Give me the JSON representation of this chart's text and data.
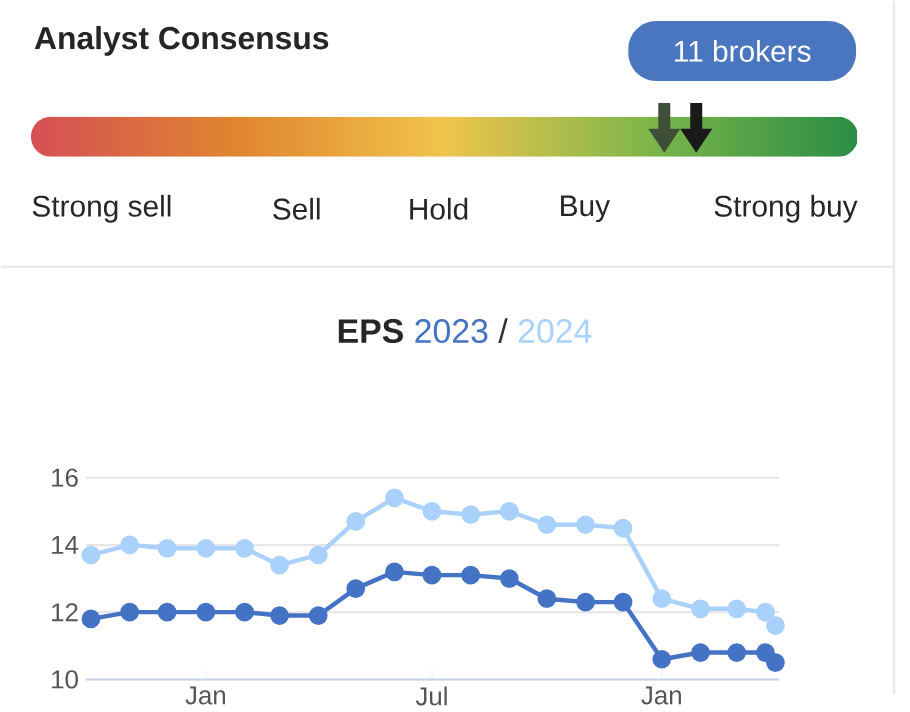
{
  "chart_data": [
    {
      "type": "other",
      "title": "Analyst Consensus",
      "categories": [
        "Strong sell",
        "Sell",
        "Hold",
        "Buy",
        "Strong buy"
      ],
      "colors": [
        "#d54f55",
        "#e0862f",
        "#f0c44c",
        "#7cb64a",
        "#2a8c45"
      ],
      "annotations": [
        "11 brokers"
      ]
    },
    {
      "type": "line",
      "title": "EPS",
      "annotations": [
        "/"
      ],
      "x": [
        "2022-10-01",
        "2022-11-01",
        "2022-12-01",
        "2023-01-01",
        "2023-02-01",
        "2023-03-01",
        "2023-04-01",
        "2023-05-01",
        "2023-06-01",
        "2023-07-01",
        "2023-08-01",
        "2023-09-01",
        "2023-10-01",
        "2023-11-01",
        "2023-12-01",
        "2024-01-01",
        "2024-02-01",
        "2024-03-01",
        "2024-03-24",
        "2024-04-01"
      ],
      "series": [
        {
          "name": "2023",
          "color": "#4472c4",
          "values": [
            11.8,
            12.0,
            12.0,
            12.0,
            12.0,
            11.9,
            11.9,
            12.7,
            13.2,
            13.1,
            13.1,
            13.0,
            12.4,
            12.3,
            12.3,
            10.6,
            10.8,
            10.8,
            10.8,
            10.5
          ]
        },
        {
          "name": "2024",
          "color": "#a9d1fb",
          "values": [
            13.7,
            14.0,
            13.9,
            13.9,
            13.9,
            13.4,
            13.7,
            14.7,
            15.4,
            15.0,
            14.9,
            15.0,
            14.6,
            14.6,
            14.5,
            12.4,
            12.1,
            12.1,
            12.0,
            11.6
          ]
        }
      ],
      "xlim": [
        "2022-09-27",
        "2024-04-04"
      ],
      "ylim": [
        10,
        16
      ],
      "xticks": [
        {
          "value": "2023-01-01",
          "label": "Jan"
        },
        {
          "value": "2023-07-01",
          "label": "Jul"
        },
        {
          "value": "2024-01-01",
          "label": "Jan"
        }
      ],
      "yticks": [
        10,
        12,
        14,
        16
      ],
      "grid": "y",
      "marker": "circle",
      "line_style": "solid"
    }
  ]
}
